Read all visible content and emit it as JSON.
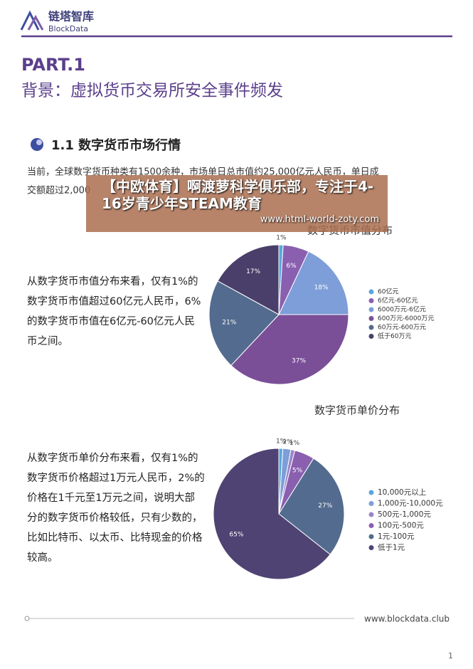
{
  "header": {
    "logo_cn": "链塔智库",
    "logo_en": "BlockData"
  },
  "part": "PART.1",
  "title": "背景：虚拟货币交易所安全事件频发",
  "section": "1.1 数字货币市场行情",
  "intro": [
    "当前，全球数字货币种类有1500余种，市场单日总市值约25,000亿元人民币，单日成",
    "交额超过2,000"
  ],
  "overlay": {
    "text": "【中欧体育】啊渡萝科学俱乐部，专注于4-16岁青少年STEAM教育",
    "url": "www.html-world-zoty.com"
  },
  "chart_data": [
    {
      "type": "pie",
      "title": "数字货币市值分布",
      "categories": [
        "60亿元",
        "6亿元-60亿元",
        "6000万元-6亿元",
        "600万元-6000万元",
        "60万元-600万元",
        "低于60万元"
      ],
      "values": [
        1,
        6,
        18,
        37,
        21,
        17
      ],
      "value_labels": [
        "1%",
        "6%",
        "18%",
        "37%",
        "21%",
        "17%"
      ],
      "colors": [
        "#5aa7de",
        "#8a5fb0",
        "#7d9ed8",
        "#7a4f98",
        "#536b8e",
        "#4a3f6a"
      ]
    },
    {
      "type": "pie",
      "title": "数字货币单价分布",
      "categories": [
        "10,000元以上",
        "1,000元-10,000元",
        "500元-1,000元",
        "100元-500元",
        "1元-100元",
        "低于1元"
      ],
      "values": [
        1,
        2,
        1,
        5,
        27,
        65
      ],
      "value_labels": [
        "1%",
        "2%",
        "1%",
        "5%",
        "27%",
        "65%"
      ],
      "colors": [
        "#5aa7de",
        "#7d9ed8",
        "#9a86c8",
        "#8a5fb0",
        "#536b8e",
        "#4f4373"
      ]
    }
  ],
  "notes": [
    "从数字货币市值分布来看，仅有1%的数字货币市值超过60亿元人民币，6%的数字货币市值在6亿元-60亿元人民币之间。",
    "从数字货币单价分布来看，仅有1%的数字货币价格超过1万元人民币，2%的价格在1千元至1万元之间，说明大部分的数字货币价格较低，只有少数的，比如比特币、以太币、比特现金的价格较高。"
  ],
  "footer": {
    "url": "www.blockdata.club",
    "page": "1"
  }
}
